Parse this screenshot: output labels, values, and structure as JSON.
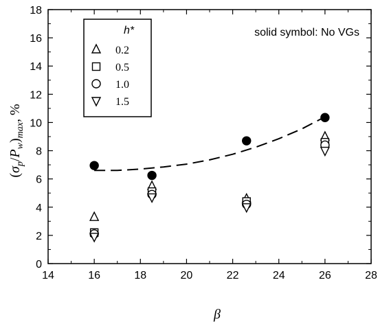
{
  "chart_data": {
    "type": "scatter",
    "xlabel": "β",
    "ylabel": "(σp/Pw)max, %",
    "xlim": [
      14,
      28
    ],
    "ylim": [
      0,
      18
    ],
    "xticks": [
      14,
      16,
      18,
      20,
      22,
      24,
      26,
      28
    ],
    "yticks": [
      0,
      2,
      4,
      6,
      8,
      10,
      12,
      14,
      16,
      18
    ],
    "grid": false,
    "legend": {
      "title": "h*",
      "placement": "top-left",
      "entries": [
        {
          "label": "0.2",
          "marker": "triangle-up"
        },
        {
          "label": "0.5",
          "marker": "square"
        },
        {
          "label": "1.0",
          "marker": "circle"
        },
        {
          "label": "1.5",
          "marker": "triangle-down"
        }
      ]
    },
    "annotation": "solid symbol: No VGs",
    "series": [
      {
        "name": "0.2",
        "marker": "triangle-up",
        "filled": false,
        "x": [
          16,
          18.5,
          22.6,
          26
        ],
        "y": [
          3.3,
          5.5,
          4.6,
          9.0
        ]
      },
      {
        "name": "0.5",
        "marker": "square",
        "filled": false,
        "x": [
          16,
          18.5,
          22.6,
          26
        ],
        "y": [
          2.2,
          5.1,
          4.4,
          8.6
        ]
      },
      {
        "name": "1.0",
        "marker": "circle",
        "filled": false,
        "x": [
          16,
          18.5,
          22.6,
          26
        ],
        "y": [
          2.1,
          4.9,
          4.2,
          8.4
        ]
      },
      {
        "name": "1.5",
        "marker": "triangle-down",
        "filled": false,
        "x": [
          16,
          18.5,
          22.6,
          26
        ],
        "y": [
          1.9,
          4.7,
          4.0,
          8.0
        ]
      },
      {
        "marker": "circle",
        "filled": true,
        "x": [
          16,
          18.5,
          22.6,
          26
        ],
        "y": [
          6.95,
          6.25,
          8.7,
          10.35
        ]
      }
    ],
    "trend_line": {
      "style": "dashed",
      "x": [
        16,
        17,
        18,
        19,
        20,
        21,
        22,
        23,
        24,
        25,
        26
      ],
      "y": [
        6.6,
        6.6,
        6.7,
        6.85,
        7.05,
        7.35,
        7.75,
        8.25,
        8.85,
        9.55,
        10.4
      ]
    }
  }
}
